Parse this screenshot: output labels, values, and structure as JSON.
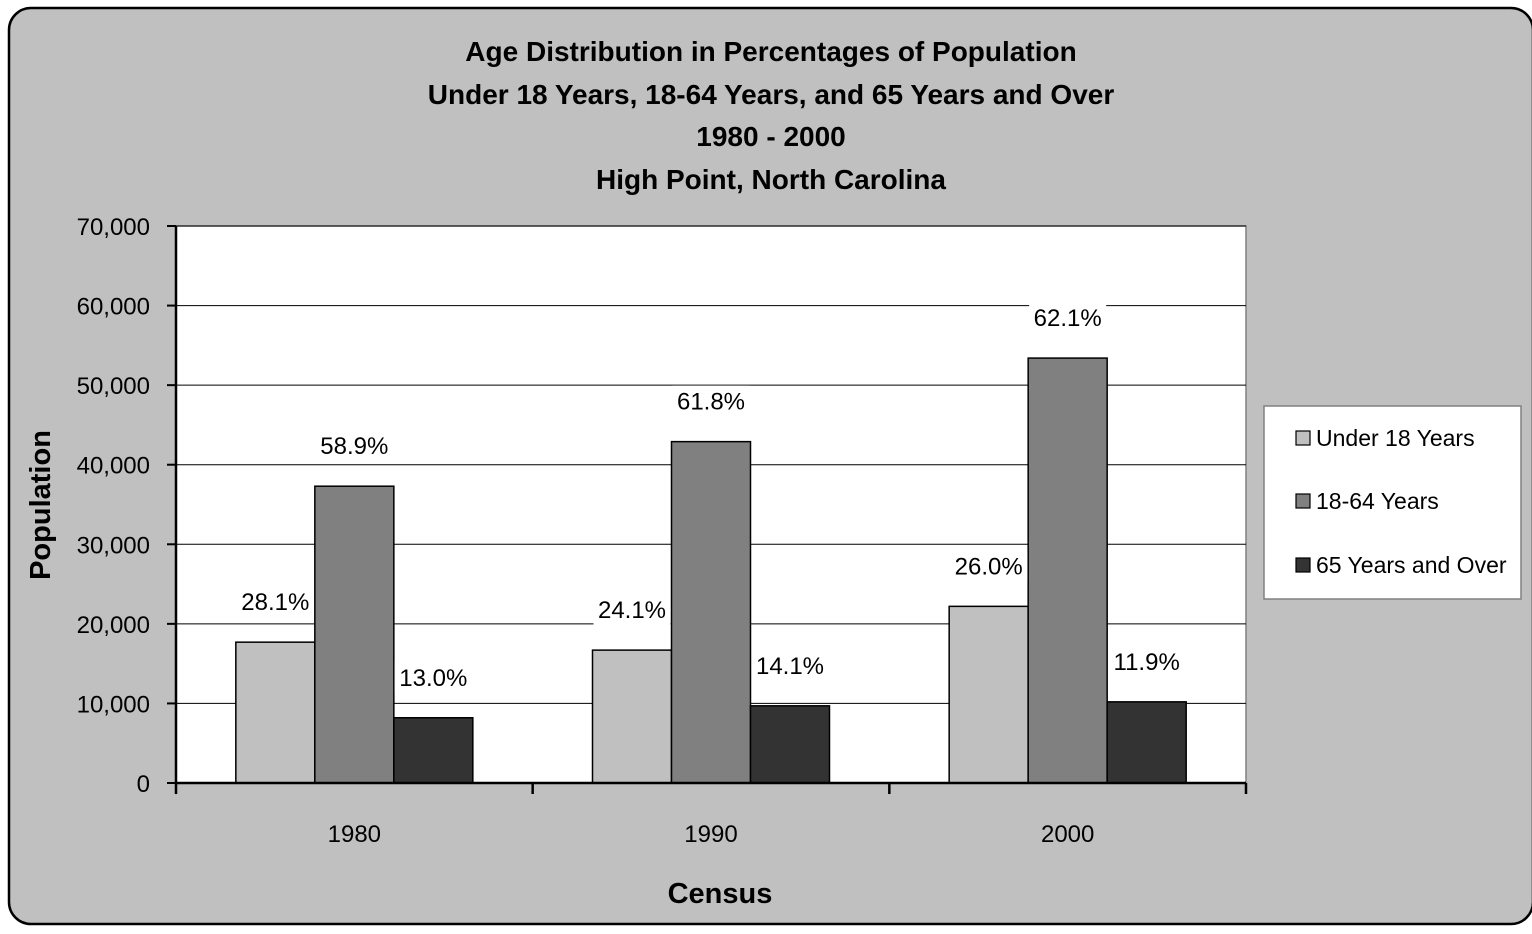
{
  "chart_data": {
    "type": "bar",
    "title": [
      "Age Distribution in Percentages of Population",
      "Under 18 Years, 18-64 Years, and 65 Years and Over",
      "1980 - 2000",
      "High Point, North Carolina"
    ],
    "xlabel": "Census",
    "ylabel": "Population",
    "categories": [
      "1980",
      "1990",
      "2000"
    ],
    "ylim": [
      0,
      70000
    ],
    "yticks": [
      "0",
      "10,000",
      "20,000",
      "30,000",
      "40,000",
      "50,000",
      "60,000",
      "70,000"
    ],
    "grid": true,
    "legend_position": "right",
    "series": [
      {
        "name": "Under 18 Years",
        "color": "#c0c0c0",
        "values": [
          17700,
          16700,
          22200
        ],
        "labels": [
          "28.1%",
          "24.1%",
          "26.0%"
        ]
      },
      {
        "name": "18-64 Years",
        "color": "#808080",
        "values": [
          37300,
          42900,
          53400
        ],
        "labels": [
          "58.9%",
          "61.8%",
          "62.1%"
        ]
      },
      {
        "name": "65 Years and Over",
        "color": "#333333",
        "values": [
          8200,
          9700,
          10200
        ],
        "labels": [
          "13.0%",
          "14.1%",
          "11.9%"
        ]
      }
    ]
  }
}
